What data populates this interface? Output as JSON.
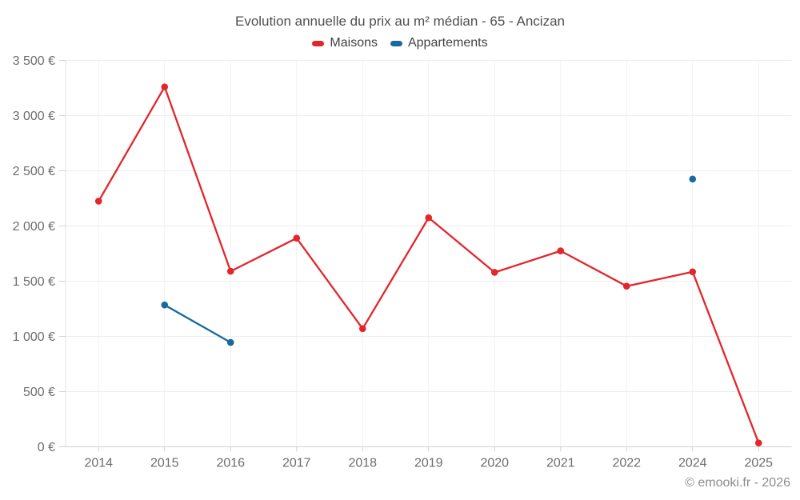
{
  "header": {
    "title": "Evolution annuelle du prix au m² médian - 65 - Ancizan"
  },
  "legend": {
    "items": [
      {
        "label": "Maisons",
        "color": "#e2262b"
      },
      {
        "label": "Appartements",
        "color": "#17699f"
      }
    ]
  },
  "footer": {
    "copyright": "© emooki.fr - 2026"
  },
  "chart_data": {
    "type": "line",
    "title": "Evolution annuelle du prix au m² médian - 65 - Ancizan",
    "categories": [
      "2014",
      "2015",
      "2016",
      "2017",
      "2018",
      "2019",
      "2020",
      "2021",
      "2022",
      "2024",
      "2025"
    ],
    "series": [
      {
        "name": "Maisons",
        "color": "#e2262b",
        "values": [
          2225,
          3260,
          1590,
          1890,
          1070,
          2075,
          1580,
          1775,
          1455,
          1585,
          35
        ]
      },
      {
        "name": "Appartements",
        "color": "#17699f",
        "values": [
          null,
          1285,
          945,
          null,
          null,
          null,
          null,
          null,
          null,
          2425,
          null
        ]
      }
    ],
    "xlabel": "",
    "ylabel": "",
    "ylim": [
      0,
      3500
    ],
    "y_tick_step": 500,
    "y_tick_labels": [
      "0 €",
      "500 €",
      "1 000 €",
      "1 500 €",
      "2 000 €",
      "2 500 €",
      "3 000 €",
      "3 500 €"
    ],
    "grid": true,
    "legend_position": "top",
    "marker_radius": 4.3,
    "line_width": 2.3
  }
}
